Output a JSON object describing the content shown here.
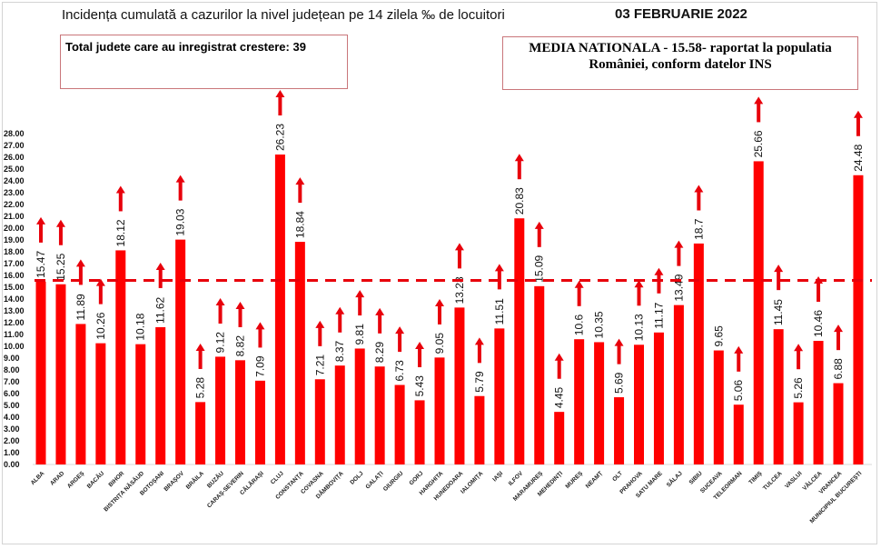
{
  "header": {
    "title": "Incidența cumulată a cazurilor la nivel județean pe 14 zilela ‰ de locuitori",
    "date": "03 FEBRUARIE 2022",
    "increase_box": "Total judete care au inregistrat crestere: 39",
    "national_box_line1": "MEDIA NATIONALA - 15.58-  raportat la populatia",
    "national_box_line2": "României, conform datelor INS"
  },
  "chart_data": {
    "type": "bar",
    "title": "Incidența cumulată a cazurilor la nivel județean pe 14 zilela ‰ de locuitori",
    "xlabel": "",
    "ylabel": "",
    "ylim": [
      0,
      28
    ],
    "ytick_step": 1,
    "grid": false,
    "legend": "none",
    "bar_color": "#ff0000",
    "reference_line": {
      "value": 15.58,
      "style": "dashed",
      "color": "#e8000b"
    },
    "categories": [
      "ALBA",
      "ARAD",
      "ARGEȘ",
      "BACĂU",
      "BIHOR",
      "BISTRIȚA NĂSĂUD",
      "BOTOȘANI",
      "BRAȘOV",
      "BRĂILA",
      "BUZĂU",
      "CARAȘ-SEVERIN",
      "CĂLĂRAȘI",
      "CLUJ",
      "CONSTANȚA",
      "COVASNA",
      "DÂMBOVIȚA",
      "DOLJ",
      "GALAȚI",
      "GIURGIU",
      "GORJ",
      "HARGHITA",
      "HUNEDOARA",
      "IALOMIȚA",
      "IAȘI",
      "ILFOV",
      "MARAMUREȘ",
      "MEHEDINȚI",
      "MUREȘ",
      "NEAMȚ",
      "OLT",
      "PRAHOVA",
      "SATU MARE",
      "SĂLAJ",
      "SIBIU",
      "SUCEAVA",
      "TELEORMAN",
      "TIMIȘ",
      "TULCEA",
      "VASLUI",
      "VÂLCEA",
      "VRANCEA",
      "MUNICIPIUL BUCUREȘTI"
    ],
    "values": [
      15.47,
      15.25,
      11.89,
      10.26,
      18.12,
      10.18,
      11.62,
      19.03,
      5.28,
      9.12,
      8.82,
      7.09,
      26.23,
      18.84,
      7.21,
      8.37,
      9.81,
      8.29,
      6.73,
      5.43,
      9.05,
      13.28,
      5.79,
      11.51,
      20.83,
      15.09,
      4.45,
      10.6,
      10.35,
      5.69,
      10.13,
      11.17,
      13.49,
      18.7,
      9.65,
      5.06,
      25.66,
      11.45,
      5.26,
      10.46,
      6.88,
      24.48
    ],
    "value_labels": [
      "15.47",
      "15.25",
      "11.89",
      "10.26",
      "18.12",
      "10.18",
      "11.62",
      "19.03",
      "5.28",
      "9.12",
      "8.82",
      "7.09",
      "26.23",
      "18.84",
      "7.21",
      "8.37",
      "9.81",
      "8.29",
      "6.73",
      "5.43",
      "9.05",
      "13.28",
      "5.79",
      "11.51",
      "20.83",
      "15.09",
      "4.45",
      "10.6",
      "10.35",
      "5.69",
      "10.13",
      "11.17",
      "13.49",
      "18.7",
      "9.65",
      "5.06",
      "25.66",
      "11.45",
      "5.26",
      "10.46",
      "6.88",
      "24.48"
    ],
    "increase_arrow": [
      true,
      true,
      true,
      true,
      true,
      false,
      true,
      true,
      true,
      true,
      true,
      true,
      true,
      true,
      true,
      true,
      true,
      true,
      true,
      true,
      true,
      true,
      true,
      true,
      true,
      true,
      true,
      true,
      false,
      true,
      true,
      true,
      true,
      true,
      false,
      true,
      true,
      true,
      true,
      true,
      true,
      true
    ],
    "arrow_color": "#e8000b"
  }
}
